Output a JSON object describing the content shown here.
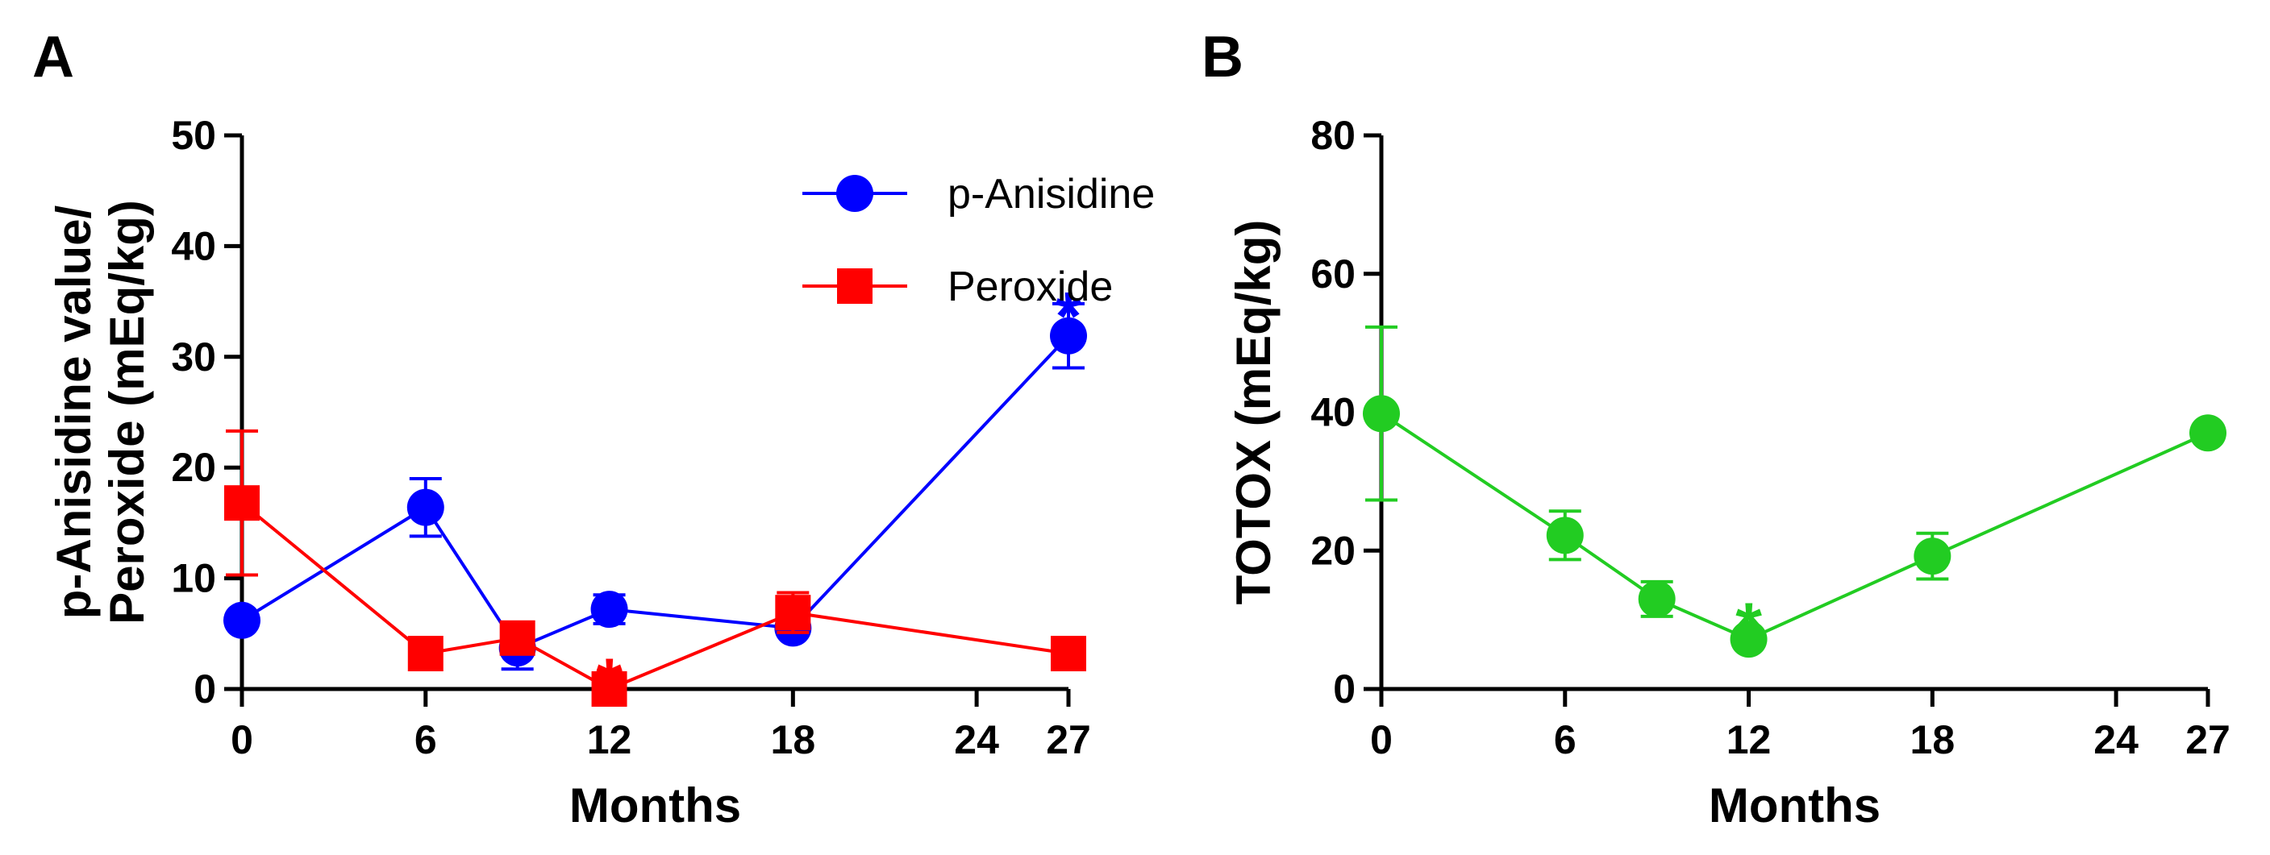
{
  "panels": {
    "a": {
      "label": "A"
    },
    "b": {
      "label": "B"
    }
  },
  "chart_data": [
    {
      "type": "line",
      "panel": "A",
      "title": "",
      "xlabel": "Months",
      "ylabel_line1": "p-Anisidine value/",
      "ylabel_line2": "Peroxide (mEq/kg)",
      "xlim": [
        0,
        27
      ],
      "ylim": [
        0,
        50
      ],
      "xticks": [
        0,
        6,
        12,
        18,
        24,
        27
      ],
      "xtick_labels": [
        "0",
        "6",
        "12",
        "18",
        "24",
        "27"
      ],
      "yticks": [
        0,
        10,
        20,
        30,
        40,
        50
      ],
      "ytick_labels": [
        "0",
        "10",
        "20",
        "30",
        "40",
        "50"
      ],
      "grid": false,
      "legend_position": "top-right",
      "series": [
        {
          "name": "p-Anisidine",
          "color": "#0000ff",
          "marker": "circle",
          "x": [
            0,
            6,
            9,
            12,
            18,
            27
          ],
          "y": [
            6.2,
            16.4,
            3.7,
            7.2,
            5.5,
            31.9
          ],
          "err": [
            0.3,
            2.6,
            1.9,
            1.3,
            0.5,
            2.9
          ]
        },
        {
          "name": "Peroxide",
          "color": "#ff0000",
          "marker": "square",
          "x": [
            0,
            6,
            9,
            12,
            18,
            27
          ],
          "y": [
            16.8,
            3.2,
            4.6,
            0.0,
            6.9,
            3.2
          ],
          "err": [
            6.5,
            0.2,
            0.8,
            0.0,
            1.8,
            0.2
          ]
        }
      ],
      "annotations": [
        {
          "text": "*",
          "x": 27,
          "y": 34.8,
          "color": "#0000ff"
        },
        {
          "text": "*",
          "x": 12,
          "y": 1.7,
          "color": "#ff0000"
        }
      ]
    },
    {
      "type": "line",
      "panel": "B",
      "title": "",
      "xlabel": "Months",
      "ylabel": "TOTOX (mEq/kg)",
      "xlim": [
        0,
        27
      ],
      "ylim": [
        0,
        80
      ],
      "xticks": [
        0,
        6,
        12,
        18,
        24,
        27
      ],
      "xtick_labels": [
        "0",
        "6",
        "12",
        "18",
        "24",
        "27"
      ],
      "yticks": [
        0,
        20,
        40,
        60,
        80
      ],
      "ytick_labels": [
        "0",
        "20",
        "40",
        "60",
        "80"
      ],
      "grid": false,
      "series": [
        {
          "color": "#22cc22",
          "marker": "circle",
          "x": [
            0,
            6,
            9,
            12,
            18,
            27
          ],
          "y": [
            39.8,
            22.2,
            13.0,
            7.2,
            19.2,
            37.0
          ],
          "err": [
            12.5,
            3.5,
            2.5,
            0.3,
            3.3,
            0.4
          ]
        }
      ],
      "annotations": [
        {
          "text": "*",
          "x": 12,
          "y": 10.8,
          "color": "#22cc22"
        }
      ]
    }
  ]
}
